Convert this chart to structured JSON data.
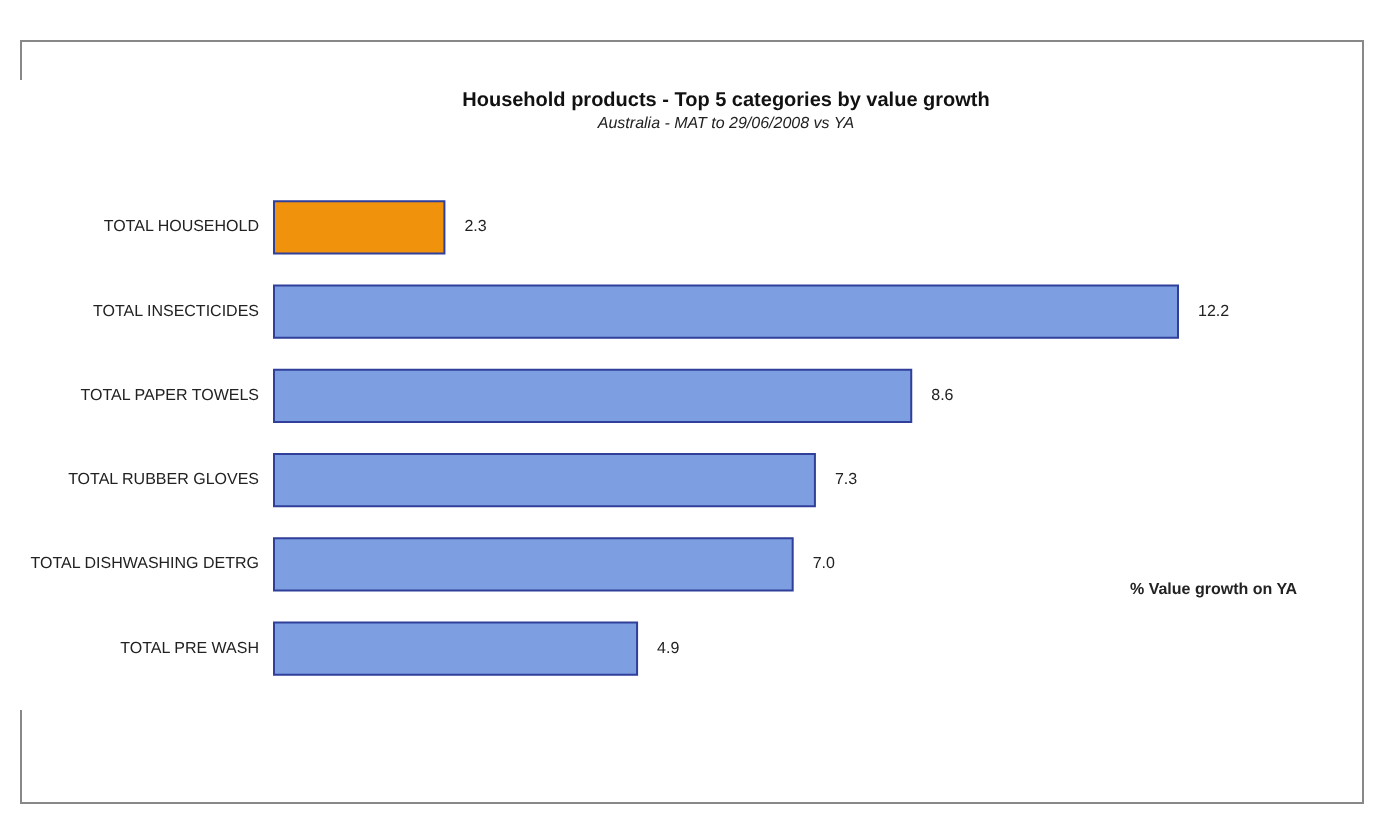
{
  "chart_data": {
    "type": "bar",
    "orientation": "horizontal",
    "title": "Household products - Top 5 categories by value growth",
    "subtitle": "Australia - MAT to 29/06/2008 vs YA",
    "categories": [
      "TOTAL HOUSEHOLD",
      "TOTAL INSECTICIDES",
      "TOTAL PAPER TOWELS",
      "TOTAL RUBBER GLOVES",
      "TOTAL DISHWASHING DETRG",
      "TOTAL PRE WASH"
    ],
    "values": [
      2.3,
      12.2,
      8.6,
      7.3,
      7.0,
      4.9
    ],
    "value_labels": [
      "2.3",
      "12.2",
      "8.6",
      "7.3",
      "7.0",
      "4.9"
    ],
    "colors": [
      "#f0920c",
      "#7d9fe2",
      "#7d9fe2",
      "#7d9fe2",
      "#7d9fe2",
      "#7d9fe2"
    ],
    "annotations": [
      "% Value growth on YA"
    ],
    "tick_labels": "y"
  }
}
